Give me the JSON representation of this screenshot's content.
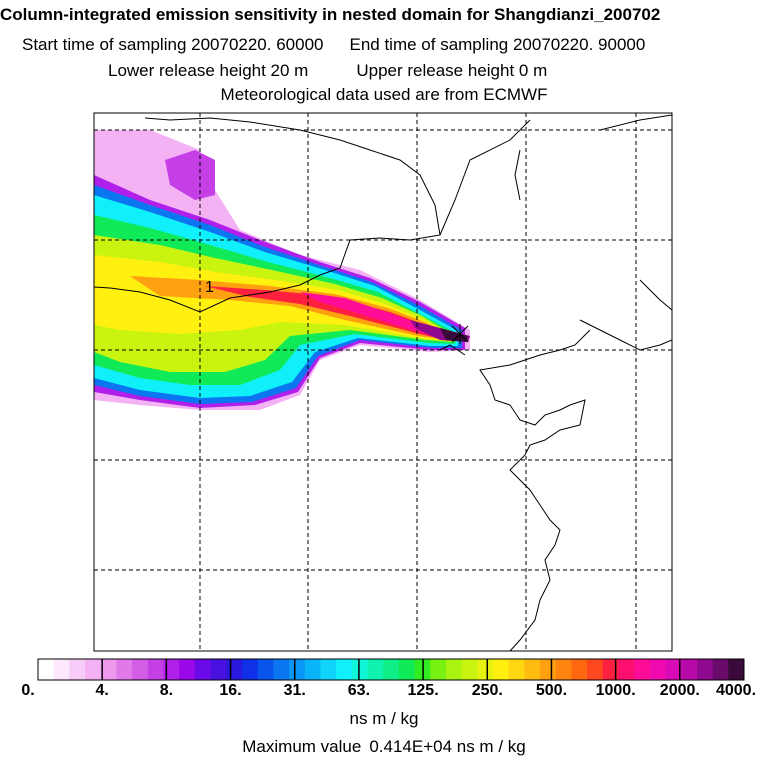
{
  "header": {
    "title": "Column-integrated emission sensitivity in nested domain for Shangdianzi_200702",
    "start_label": "Start time of sampling 20070220. 60000",
    "end_label": "End time of sampling 20070220. 90000",
    "lower_label": "Lower release height   20 m",
    "upper_label": "Upper release height    0 m",
    "met_label": "Meteorological data used are from ECMWF"
  },
  "map": {
    "release_marker_label": "1",
    "plume_max_color": "#3a0a3a"
  },
  "colorbar": {
    "tick_labels": [
      "0.",
      "4.",
      "8.",
      "16.",
      "31.",
      "63.",
      "125.",
      "250.",
      "500.",
      "1000.",
      "2000.",
      "4000."
    ],
    "segment_colors": [
      "#ffffff",
      "#fde8fd",
      "#f8ccf8",
      "#f4b2f4",
      "#ee98ee",
      "#e07ae8",
      "#d35ee6",
      "#c440e6",
      "#b020ea",
      "#9a08ea",
      "#6a0ae8",
      "#4a10e0",
      "#2a18dc",
      "#1030e8",
      "#0a56ec",
      "#0a76f0",
      "#0a96f4",
      "#0ab4f8",
      "#10d4fa",
      "#10f0fa",
      "#10f6d8",
      "#10f2b0",
      "#10ee88",
      "#10ea58",
      "#30ec20",
      "#78f010",
      "#a8f410",
      "#c8f410",
      "#e8f210",
      "#fff010",
      "#ffd610",
      "#ffbc10",
      "#ffa010",
      "#ff8410",
      "#ff6810",
      "#ff4820",
      "#ff2040",
      "#ff1070",
      "#ff0c98",
      "#f00ab0",
      "#d80ab8",
      "#b80aa8",
      "#900a90",
      "#6a0a6a",
      "#3a0a3a"
    ],
    "units": "ns m / kg",
    "max_value_label": "Maximum value",
    "max_value": "0.414E+04 ns m / kg"
  }
}
